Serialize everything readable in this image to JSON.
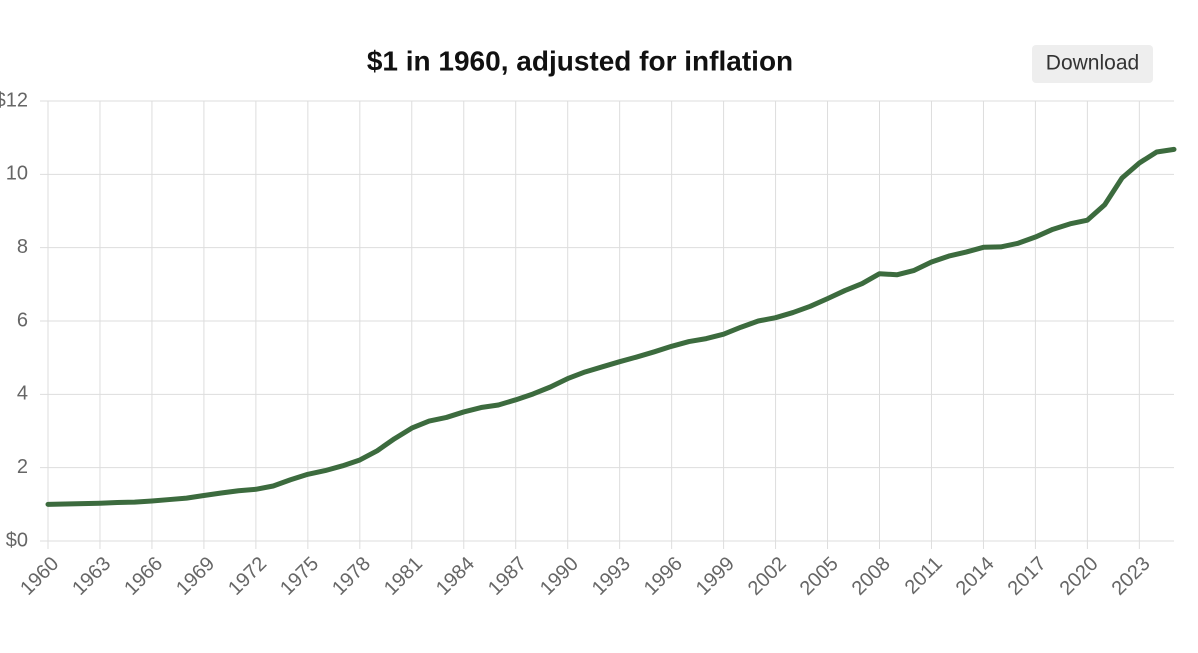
{
  "chart_data": {
    "type": "line",
    "title": "$1 in 1960, adjusted for inflation",
    "x": [
      1960,
      1961,
      1962,
      1963,
      1964,
      1965,
      1966,
      1967,
      1968,
      1969,
      1970,
      1971,
      1972,
      1973,
      1974,
      1975,
      1976,
      1977,
      1978,
      1979,
      1980,
      1981,
      1982,
      1983,
      1984,
      1985,
      1986,
      1987,
      1988,
      1989,
      1990,
      1991,
      1992,
      1993,
      1994,
      1995,
      1996,
      1997,
      1998,
      1999,
      2000,
      2001,
      2002,
      2003,
      2004,
      2005,
      2006,
      2007,
      2008,
      2009,
      2010,
      2011,
      2012,
      2013,
      2014,
      2015,
      2016,
      2017,
      2018,
      2019,
      2020,
      2021,
      2022,
      2023,
      2024,
      2025
    ],
    "values": [
      1.0,
      1.01,
      1.02,
      1.03,
      1.05,
      1.06,
      1.09,
      1.13,
      1.17,
      1.24,
      1.31,
      1.37,
      1.41,
      1.5,
      1.67,
      1.82,
      1.92,
      2.05,
      2.21,
      2.46,
      2.79,
      3.08,
      3.27,
      3.37,
      3.52,
      3.64,
      3.71,
      3.85,
      4.01,
      4.2,
      4.43,
      4.61,
      4.75,
      4.89,
      5.02,
      5.16,
      5.31,
      5.44,
      5.52,
      5.64,
      5.83,
      6.0,
      6.09,
      6.23,
      6.4,
      6.61,
      6.83,
      7.02,
      7.29,
      7.26,
      7.38,
      7.61,
      7.77,
      7.88,
      8.01,
      8.02,
      8.12,
      8.29,
      8.5,
      8.65,
      8.75,
      9.17,
      9.9,
      10.31,
      10.61,
      10.68
    ],
    "color": "#3c6b3e",
    "xlim": [
      1960,
      2025
    ],
    "xticks": [
      1960,
      1963,
      1966,
      1969,
      1972,
      1975,
      1978,
      1981,
      1984,
      1987,
      1990,
      1993,
      1996,
      1999,
      2002,
      2005,
      2008,
      2011,
      2014,
      2017,
      2020,
      2023
    ],
    "ylim": [
      0,
      12
    ],
    "yticks": [
      {
        "value": 0,
        "label": "$0"
      },
      2,
      4,
      6,
      8,
      10,
      {
        "value": 12,
        "label": "$12"
      }
    ],
    "grid": true
  },
  "ui": {
    "download": "Download"
  }
}
